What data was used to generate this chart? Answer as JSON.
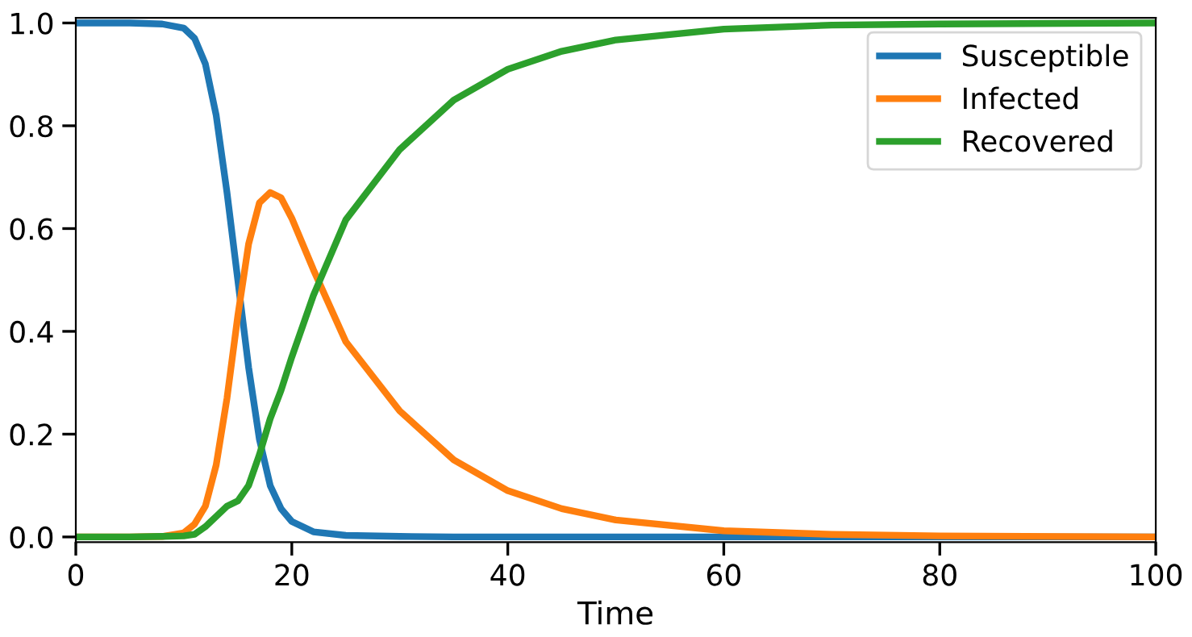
{
  "chart_data": {
    "type": "line",
    "xlabel": "Time",
    "x": [
      0,
      5,
      8,
      10,
      11,
      12,
      13,
      14,
      15,
      16,
      17,
      18,
      19,
      20,
      22,
      25,
      30,
      35,
      40,
      45,
      50,
      60,
      70,
      80,
      100
    ],
    "series": [
      {
        "name": "Susceptible",
        "color": "#1f77b4",
        "values": [
          1,
          1,
          0.998,
          0.99,
          0.97,
          0.92,
          0.82,
          0.67,
          0.5,
          0.33,
          0.19,
          0.1,
          0.055,
          0.03,
          0.01,
          0.003,
          0.001,
          0,
          0,
          0,
          0,
          0,
          0,
          0,
          0
        ]
      },
      {
        "name": "Infected",
        "color": "#ff7f0e",
        "values": [
          0,
          0,
          0.001,
          0.008,
          0.025,
          0.06,
          0.14,
          0.27,
          0.43,
          0.57,
          0.65,
          0.67,
          0.66,
          0.62,
          0.52,
          0.38,
          0.245,
          0.15,
          0.09,
          0.055,
          0.033,
          0.012,
          0.005,
          0.002,
          0
        ]
      },
      {
        "name": "Recovered",
        "color": "#2ca02c",
        "values": [
          0,
          0,
          0.001,
          0.002,
          0.005,
          0.02,
          0.04,
          0.06,
          0.07,
          0.1,
          0.16,
          0.23,
          0.285,
          0.35,
          0.47,
          0.617,
          0.754,
          0.85,
          0.91,
          0.945,
          0.967,
          0.988,
          0.996,
          0.998,
          1.0
        ]
      }
    ],
    "xlim": [
      0,
      100
    ],
    "ylim": [
      -0.01,
      1.01
    ],
    "xticks": [
      0,
      20,
      40,
      60,
      80,
      100
    ],
    "yticks": [
      {
        "value": 0,
        "label": "0.0"
      },
      0.2,
      0.4,
      0.6,
      0.8,
      {
        "value": 1,
        "label": "1.0"
      }
    ],
    "legend": "top right",
    "grid": false,
    "line_style": "solid",
    "marker": "none"
  }
}
